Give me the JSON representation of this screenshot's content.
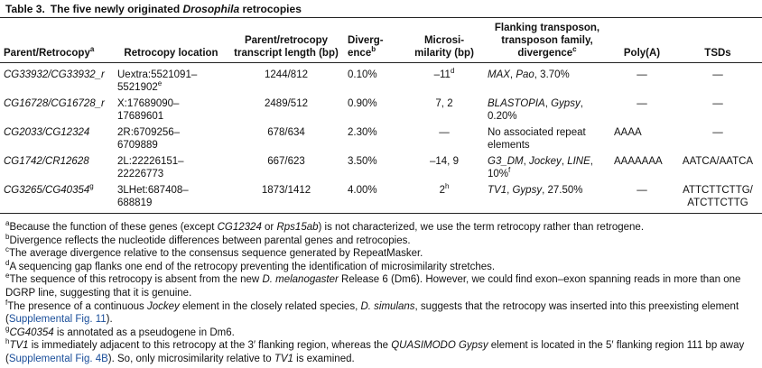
{
  "title": {
    "label": "Table 3.",
    "text": [
      "The five newly originated ",
      "Drosophila",
      " retrocopies"
    ]
  },
  "table": {
    "header": [
      [
        "Parent/Retrocopy",
        "a"
      ],
      [
        "Retrocopy location"
      ],
      [
        "Parent/retrocopy transcript length (bp)"
      ],
      [
        "Diverg-",
        "ence",
        "b"
      ],
      [
        "Microsi-",
        "milarity (bp)"
      ],
      [
        "Flanking transposon, transposon family, divergence",
        "c"
      ],
      [
        "Poly(A)"
      ],
      [
        "TSDs"
      ]
    ],
    "rows": [
      [
        [
          "CG33932/CG33932_r"
        ],
        [
          "Uextra:5521091–",
          "5521902",
          "e"
        ],
        [
          "1244/812"
        ],
        [
          "0.10%"
        ],
        [
          "–11",
          "d"
        ],
        [
          "MAX",
          ", ",
          "Pao",
          ", 3.70%"
        ],
        [
          "—"
        ],
        [
          "—"
        ]
      ],
      [
        [
          "CG16728/CG16728_r"
        ],
        [
          "X:17689090–",
          "17689601"
        ],
        [
          "2489/512"
        ],
        [
          "0.90%"
        ],
        [
          "7, 2"
        ],
        [
          "BLASTOPIA",
          ", ",
          "Gypsy",
          ", 0.20%"
        ],
        [
          "—"
        ],
        [
          "—"
        ]
      ],
      [
        [
          "CG2033/CG12324"
        ],
        [
          "2R:6709256–",
          "6709889"
        ],
        [
          "678/634"
        ],
        [
          "2.30%"
        ],
        [
          "—"
        ],
        [
          "No associated repeat elements"
        ],
        [
          "AAAA"
        ],
        [
          "—"
        ]
      ],
      [
        [
          "CG1742/CR12628"
        ],
        [
          "2L:22226151–",
          "22226773"
        ],
        [
          "667/623"
        ],
        [
          "3.50%"
        ],
        [
          "–14, 9"
        ],
        [
          "G3_DM",
          ", ",
          "Jockey",
          ", ",
          "LINE",
          ", 10%",
          "f"
        ],
        [
          "AAAAAAA"
        ],
        [
          "AATCA/AATCA"
        ]
      ],
      [
        [
          "CG3265/CG40354",
          "g"
        ],
        [
          "3LHet:687408–",
          "688819"
        ],
        [
          "1873/1412"
        ],
        [
          "4.00%"
        ],
        [
          "2",
          "h"
        ],
        [
          "TV1",
          ", ",
          "Gypsy",
          ", 27.50%"
        ],
        [
          "—"
        ],
        [
          "ATTCTTCTTG/",
          "ATCTTCTTG"
        ]
      ]
    ]
  },
  "footnotes": [
    [
      "a",
      "Because the function of these genes (except ",
      "CG12324",
      " or ",
      "Rps15ab",
      ") is not characterized, we use the term retrocopy rather than retrogene."
    ],
    [
      "b",
      "Divergence reflects the nucleotide differences between parental genes and retrocopies."
    ],
    [
      "c",
      "The average divergence relative to the consensus sequence generated by RepeatMasker."
    ],
    [
      "d",
      "A sequencing gap flanks one end of the retrocopy preventing the identification of microsimilarity stretches."
    ],
    [
      "e",
      "The sequence of this retrocopy is absent from the new ",
      "D. melanogaster",
      " Release 6 (Dm6). However, we could find exon–exon spanning reads in more than one DGRP line, suggesting that it is genuine."
    ],
    [
      "f",
      "The presence of a continuous ",
      "Jockey",
      " element in the closely related species, ",
      "D. simulans",
      ", suggests that the retrocopy was inserted into this preexisting element (",
      "Supplemental Fig. 11",
      ")."
    ],
    [
      "g",
      "CG40354",
      " is annotated as a pseudogene in Dm6."
    ],
    [
      "h",
      "TV1",
      " is immediately adjacent to this retrocopy at the 3′ flanking region, whereas the ",
      "QUASIMODO Gypsy",
      " element is located in the 5′ flanking region 111 bp away (",
      "Supplemental Fig. 4B",
      "). So, only microsimilarity relative to ",
      "TV1",
      " is examined."
    ]
  ]
}
